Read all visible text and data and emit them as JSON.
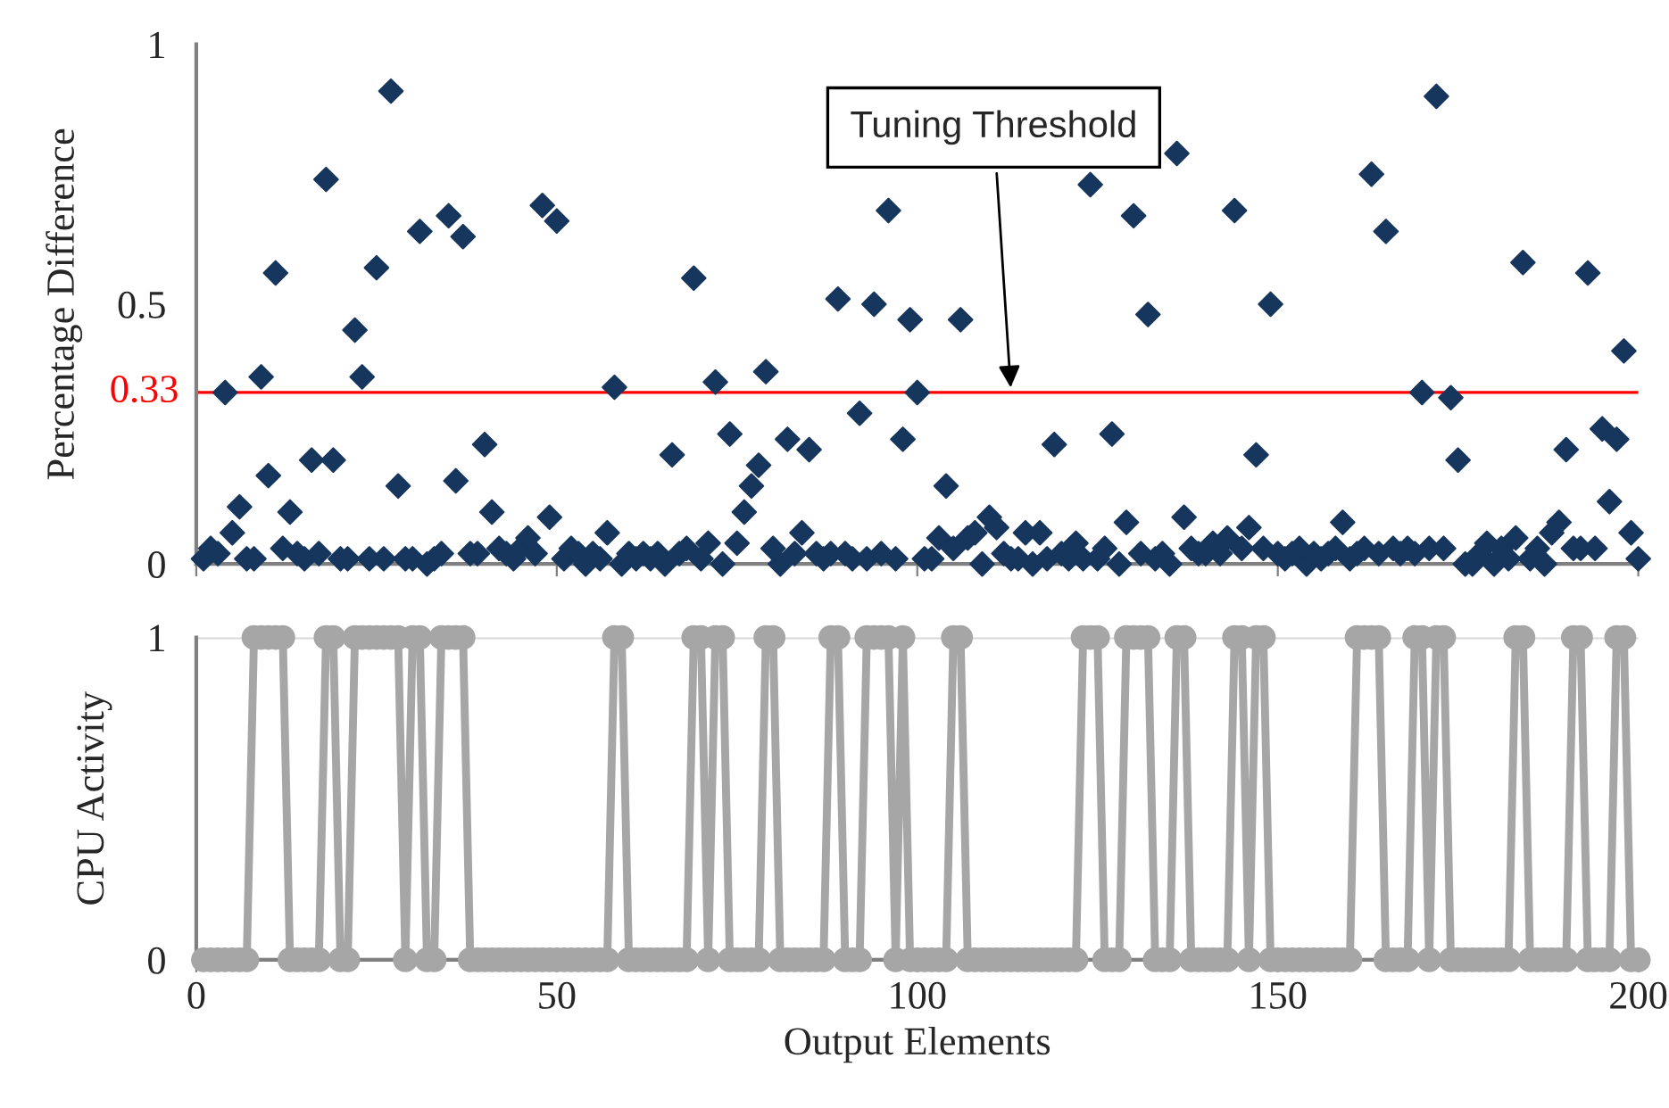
{
  "chart_data": [
    {
      "type": "scatter",
      "ylabel": "Percentage Difference",
      "xlim": [
        0,
        200
      ],
      "xticks": [
        0,
        50,
        100,
        150,
        200
      ],
      "ylim": [
        0,
        1
      ],
      "yticks": [
        0,
        0.5,
        1
      ],
      "tick_labels": "y",
      "grid": false,
      "legend": false,
      "marker": "diamond",
      "ref_lines": [
        {
          "axis": "y",
          "value": 0.33,
          "label": "0.33",
          "color": "#ff0000"
        }
      ],
      "annotations": [
        {
          "text": "Tuning Threshold",
          "x": 113,
          "y": 0.33
        }
      ],
      "series": [
        {
          "color": "#17365d",
          "x": [
            1,
            2,
            3,
            4,
            5,
            6,
            7,
            8,
            9,
            10,
            11,
            12,
            13,
            14,
            15,
            16,
            17,
            18,
            19,
            20,
            21,
            22,
            23,
            24,
            25,
            26,
            27,
            28,
            29,
            30,
            31,
            32,
            33,
            34,
            35,
            36,
            37,
            38,
            39,
            40,
            41,
            42,
            43,
            44,
            45,
            46,
            47,
            48,
            49,
            50,
            51,
            52,
            53,
            54,
            55,
            56,
            57,
            58,
            59,
            60,
            61,
            62,
            63,
            64,
            65,
            66,
            67,
            68,
            69,
            70,
            71,
            72,
            73,
            74,
            75,
            76,
            77,
            78,
            79,
            80,
            81,
            82,
            83,
            84,
            85,
            86,
            87,
            88,
            89,
            90,
            91,
            92,
            93,
            94,
            95,
            96,
            97,
            98,
            99,
            100,
            101,
            102,
            103,
            104,
            105,
            106,
            107,
            108,
            109,
            110,
            111,
            112,
            113,
            114,
            115,
            116,
            117,
            118,
            119,
            120,
            121,
            122,
            123,
            124,
            125,
            126,
            127,
            128,
            129,
            130,
            131,
            132,
            133,
            134,
            135,
            136,
            137,
            138,
            139,
            140,
            141,
            142,
            143,
            144,
            145,
            146,
            147,
            148,
            149,
            150,
            151,
            152,
            153,
            154,
            155,
            156,
            157,
            158,
            159,
            160,
            161,
            162,
            163,
            164,
            165,
            166,
            167,
            168,
            169,
            170,
            171,
            172,
            173,
            174,
            175,
            176,
            177,
            178,
            179,
            180,
            181,
            182,
            183,
            184,
            185,
            186,
            187,
            188,
            189,
            190,
            191,
            192,
            193,
            194,
            195,
            196,
            197,
            198,
            199,
            200
          ],
          "values": [
            0.01,
            0.03,
            0.02,
            0.33,
            0.06,
            0.11,
            0.01,
            0.01,
            0.36,
            0.17,
            0.56,
            0.03,
            0.1,
            0.02,
            0.01,
            0.2,
            0.02,
            0.74,
            0.2,
            0.01,
            0.01,
            0.45,
            0.36,
            0.01,
            0.57,
            0.01,
            0.91,
            0.15,
            0.01,
            0.01,
            0.64,
            0.0,
            0.01,
            0.02,
            0.67,
            0.16,
            0.63,
            0.02,
            0.02,
            0.23,
            0.1,
            0.03,
            0.02,
            0.01,
            0.03,
            0.05,
            0.02,
            0.69,
            0.09,
            0.66,
            0.01,
            0.03,
            0.02,
            0.0,
            0.02,
            0.01,
            0.06,
            0.34,
            0.0,
            0.02,
            0.01,
            0.02,
            0.01,
            0.02,
            0.0,
            0.21,
            0.02,
            0.03,
            0.55,
            0.01,
            0.04,
            0.35,
            0.0,
            0.25,
            0.04,
            0.1,
            0.15,
            0.19,
            0.37,
            0.03,
            0.0,
            0.24,
            0.02,
            0.06,
            0.22,
            0.02,
            0.01,
            0.02,
            0.51,
            0.02,
            0.01,
            0.29,
            0.01,
            0.5,
            0.02,
            0.68,
            0.01,
            0.24,
            0.47,
            0.33,
            0.01,
            0.01,
            0.05,
            0.15,
            0.03,
            0.47,
            0.05,
            0.06,
            0.0,
            0.09,
            0.07,
            0.02,
            0.01,
            0.01,
            0.06,
            0.0,
            0.06,
            0.01,
            0.23,
            0.02,
            0.01,
            0.04,
            0.01,
            0.73,
            0.01,
            0.03,
            0.25,
            0.0,
            0.08,
            0.67,
            0.02,
            0.48,
            0.01,
            0.02,
            0.0,
            0.79,
            0.09,
            0.03,
            0.02,
            0.02,
            0.04,
            0.02,
            0.05,
            0.68,
            0.03,
            0.07,
            0.21,
            0.03,
            0.5,
            0.02,
            0.01,
            0.02,
            0.03,
            0.0,
            0.02,
            0.01,
            0.02,
            0.03,
            0.08,
            0.01,
            0.02,
            0.03,
            0.75,
            0.02,
            0.64,
            0.03,
            0.02,
            0.03,
            0.02,
            0.33,
            0.03,
            0.9,
            0.03,
            0.32,
            0.2,
            0.0,
            0.0,
            0.02,
            0.04,
            0.0,
            0.03,
            0.01,
            0.05,
            0.58,
            0.01,
            0.03,
            0.0,
            0.06,
            0.08,
            0.22,
            0.03,
            0.03,
            0.56,
            0.03,
            0.26,
            0.12,
            0.24,
            0.41,
            0.06,
            0.01
          ]
        }
      ]
    },
    {
      "type": "line",
      "xlabel": "Output Elements",
      "ylabel": "CPU Activity",
      "xlim": [
        0,
        200
      ],
      "xticks": [
        0,
        50,
        100,
        150,
        200
      ],
      "ylim": [
        0,
        1
      ],
      "yticks": [
        0,
        1
      ],
      "grid": "y",
      "legend": false,
      "marker": "circle",
      "line_style": "solid",
      "series": [
        {
          "color": "#a6a6a6",
          "x": [
            1,
            2,
            3,
            4,
            5,
            6,
            7,
            8,
            9,
            10,
            11,
            12,
            13,
            14,
            15,
            16,
            17,
            18,
            19,
            20,
            21,
            22,
            23,
            24,
            25,
            26,
            27,
            28,
            29,
            30,
            31,
            32,
            33,
            34,
            35,
            36,
            37,
            38,
            39,
            40,
            41,
            42,
            43,
            44,
            45,
            46,
            47,
            48,
            49,
            50,
            51,
            52,
            53,
            54,
            55,
            56,
            57,
            58,
            59,
            60,
            61,
            62,
            63,
            64,
            65,
            66,
            67,
            68,
            69,
            70,
            71,
            72,
            73,
            74,
            75,
            76,
            77,
            78,
            79,
            80,
            81,
            82,
            83,
            84,
            85,
            86,
            87,
            88,
            89,
            90,
            91,
            92,
            93,
            94,
            95,
            96,
            97,
            98,
            99,
            100,
            101,
            102,
            103,
            104,
            105,
            106,
            107,
            108,
            109,
            110,
            111,
            112,
            113,
            114,
            115,
            116,
            117,
            118,
            119,
            120,
            121,
            122,
            123,
            124,
            125,
            126,
            127,
            128,
            129,
            130,
            131,
            132,
            133,
            134,
            135,
            136,
            137,
            138,
            139,
            140,
            141,
            142,
            143,
            144,
            145,
            146,
            147,
            148,
            149,
            150,
            151,
            152,
            153,
            154,
            155,
            156,
            157,
            158,
            159,
            160,
            161,
            162,
            163,
            164,
            165,
            166,
            167,
            168,
            169,
            170,
            171,
            172,
            173,
            174,
            175,
            176,
            177,
            178,
            179,
            180,
            181,
            182,
            183,
            184,
            185,
            186,
            187,
            188,
            189,
            190,
            191,
            192,
            193,
            194,
            195,
            196,
            197,
            198,
            199,
            200
          ],
          "values": [
            0,
            0,
            0,
            0,
            0,
            0,
            0,
            1,
            1,
            1,
            1,
            1,
            0,
            0,
            0,
            0,
            0,
            1,
            1,
            0,
            0,
            1,
            1,
            1,
            1,
            1,
            1,
            1,
            0,
            1,
            1,
            0,
            0,
            1,
            1,
            1,
            1,
            0,
            0,
            0,
            0,
            0,
            0,
            0,
            0,
            0,
            0,
            0,
            0,
            0,
            0,
            0,
            0,
            0,
            0,
            0,
            0,
            1,
            1,
            0,
            0,
            0,
            0,
            0,
            0,
            0,
            0,
            0,
            1,
            1,
            0,
            1,
            1,
            0,
            0,
            0,
            0,
            0,
            1,
            1,
            0,
            0,
            0,
            0,
            0,
            0,
            0,
            1,
            1,
            0,
            0,
            0,
            1,
            1,
            1,
            1,
            0,
            1,
            0,
            0,
            0,
            0,
            0,
            0,
            1,
            1,
            0,
            0,
            0,
            0,
            0,
            0,
            0,
            0,
            0,
            0,
            0,
            0,
            0,
            0,
            0,
            0,
            1,
            1,
            1,
            0,
            0,
            0,
            1,
            1,
            1,
            1,
            0,
            0,
            0,
            1,
            1,
            0,
            0,
            0,
            0,
            0,
            0,
            1,
            1,
            0,
            1,
            1,
            0,
            0,
            0,
            0,
            0,
            0,
            0,
            0,
            0,
            0,
            0,
            0,
            1,
            1,
            1,
            1,
            0,
            0,
            0,
            0,
            1,
            1,
            0,
            1,
            1,
            0,
            0,
            0,
            0,
            0,
            0,
            0,
            0,
            0,
            1,
            1,
            0,
            0,
            0,
            0,
            0,
            0,
            1,
            1,
            0,
            0,
            0,
            0,
            1,
            1,
            0,
            0
          ]
        }
      ]
    }
  ]
}
